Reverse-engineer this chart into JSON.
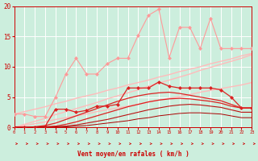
{
  "background_color": "#cceedd",
  "grid_color": "#ffffff",
  "x_min": 0,
  "x_max": 23,
  "y_min": 0,
  "y_max": 20,
  "xlabel": "Vent moyen/en rafales ( km/h )",
  "x_ticks": [
    0,
    1,
    2,
    3,
    4,
    5,
    6,
    7,
    8,
    9,
    10,
    11,
    12,
    13,
    14,
    15,
    16,
    17,
    18,
    19,
    20,
    21,
    22,
    23
  ],
  "y_ticks": [
    0,
    5,
    10,
    15,
    20
  ],
  "lines": [
    {
      "x": [
        0,
        1,
        2,
        3,
        4,
        5,
        6,
        7,
        8,
        9,
        10,
        11,
        12,
        13,
        14,
        15,
        16,
        17,
        18,
        19,
        20,
        21,
        22,
        23
      ],
      "y": [
        2.2,
        2.6,
        3.0,
        3.4,
        3.9,
        4.3,
        4.8,
        5.2,
        5.6,
        6.1,
        6.5,
        7.0,
        7.4,
        7.8,
        8.3,
        8.7,
        9.2,
        9.6,
        10.0,
        10.5,
        10.9,
        11.3,
        11.8,
        12.2
      ],
      "color": "#ffbbbb",
      "lw": 1.0,
      "marker": null,
      "ls": "-"
    },
    {
      "x": [
        0,
        1,
        2,
        3,
        4,
        5,
        6,
        7,
        8,
        9,
        10,
        11,
        12,
        13,
        14,
        15,
        16,
        17,
        18,
        19,
        20,
        21,
        22,
        23
      ],
      "y": [
        0,
        0.5,
        1.0,
        1.5,
        2.1,
        2.6,
        3.1,
        3.6,
        4.1,
        4.7,
        5.2,
        5.7,
        6.2,
        6.8,
        7.3,
        7.8,
        8.3,
        8.8,
        9.4,
        9.9,
        10.4,
        10.9,
        11.4,
        12.0
      ],
      "color": "#ffbbbb",
      "lw": 1.0,
      "marker": null,
      "ls": "-"
    },
    {
      "x": [
        0,
        1,
        2,
        3,
        4,
        5,
        6,
        7,
        8,
        9,
        10,
        11,
        12,
        13,
        14,
        15,
        16,
        17,
        18,
        19,
        20,
        21,
        22,
        23
      ],
      "y": [
        0,
        0.3,
        0.6,
        0.9,
        1.3,
        1.6,
        1.9,
        2.2,
        2.6,
        2.9,
        3.2,
        3.5,
        3.8,
        4.2,
        4.5,
        4.8,
        5.1,
        5.4,
        5.8,
        6.1,
        6.4,
        6.7,
        7.0,
        7.4
      ],
      "color": "#ffbbbb",
      "lw": 1.0,
      "marker": null,
      "ls": "-"
    },
    {
      "x": [
        0,
        1,
        2,
        3,
        4,
        5,
        6,
        7,
        8,
        9,
        10,
        11,
        12,
        13,
        14,
        15,
        16,
        17,
        18,
        19,
        20,
        21,
        22,
        23
      ],
      "y": [
        2.2,
        2.2,
        1.8,
        1.8,
        5.0,
        8.8,
        11.4,
        8.8,
        8.8,
        10.5,
        11.4,
        11.4,
        15.2,
        18.5,
        19.5,
        11.5,
        16.5,
        16.5,
        13.0,
        18.0,
        13.0,
        13.0,
        13.0,
        13.0
      ],
      "color": "#ff9999",
      "lw": 0.8,
      "marker": "D",
      "ms": 2.0,
      "ls": "-"
    },
    {
      "x": [
        0,
        1,
        2,
        3,
        4,
        5,
        6,
        7,
        8,
        9,
        10,
        11,
        12,
        13,
        14,
        15,
        16,
        17,
        18,
        19,
        20,
        21,
        22,
        23
      ],
      "y": [
        0,
        0,
        0,
        0.2,
        3.0,
        3.0,
        2.5,
        2.8,
        3.5,
        3.5,
        3.8,
        6.5,
        6.5,
        6.5,
        7.5,
        6.8,
        6.5,
        6.5,
        6.5,
        6.5,
        6.2,
        5.0,
        3.2,
        3.2
      ],
      "color": "#dd2222",
      "lw": 0.9,
      "marker": "D",
      "ms": 2.0,
      "ls": "-"
    },
    {
      "x": [
        0,
        1,
        2,
        3,
        4,
        5,
        6,
        7,
        8,
        9,
        10,
        11,
        12,
        13,
        14,
        15,
        16,
        17,
        18,
        19,
        20,
        21,
        22,
        23
      ],
      "y": [
        0,
        0,
        0.1,
        0.3,
        0.7,
        1.3,
        1.9,
        2.5,
        3.1,
        3.7,
        4.3,
        4.8,
        5.2,
        5.5,
        5.7,
        5.8,
        5.6,
        5.3,
        5.0,
        4.7,
        4.4,
        3.8,
        3.2,
        3.2
      ],
      "color": "#dd2222",
      "lw": 0.9,
      "marker": null,
      "ls": "-"
    },
    {
      "x": [
        0,
        1,
        2,
        3,
        4,
        5,
        6,
        7,
        8,
        9,
        10,
        11,
        12,
        13,
        14,
        15,
        16,
        17,
        18,
        19,
        20,
        21,
        22,
        23
      ],
      "y": [
        0,
        0,
        0,
        0.1,
        0.2,
        0.5,
        0.9,
        1.4,
        1.9,
        2.4,
        2.9,
        3.4,
        3.8,
        4.2,
        4.5,
        4.7,
        4.8,
        4.7,
        4.5,
        4.3,
        4.0,
        3.5,
        3.2,
        3.2
      ],
      "color": "#dd2222",
      "lw": 0.9,
      "marker": null,
      "ls": "-"
    },
    {
      "x": [
        0,
        1,
        2,
        3,
        4,
        5,
        6,
        7,
        8,
        9,
        10,
        11,
        12,
        13,
        14,
        15,
        16,
        17,
        18,
        19,
        20,
        21,
        22,
        23
      ],
      "y": [
        0,
        0,
        0,
        0.05,
        0.1,
        0.2,
        0.4,
        0.7,
        1.0,
        1.3,
        1.7,
        2.1,
        2.5,
        2.9,
        3.2,
        3.5,
        3.7,
        3.8,
        3.7,
        3.5,
        3.3,
        2.9,
        2.5,
        2.5
      ],
      "color": "#bb1111",
      "lw": 0.8,
      "marker": null,
      "ls": "-"
    },
    {
      "x": [
        0,
        1,
        2,
        3,
        4,
        5,
        6,
        7,
        8,
        9,
        10,
        11,
        12,
        13,
        14,
        15,
        16,
        17,
        18,
        19,
        20,
        21,
        22,
        23
      ],
      "y": [
        0,
        0,
        0,
        0,
        0.05,
        0.1,
        0.2,
        0.3,
        0.5,
        0.7,
        0.9,
        1.1,
        1.4,
        1.6,
        1.9,
        2.1,
        2.3,
        2.4,
        2.4,
        2.3,
        2.2,
        1.9,
        1.6,
        1.6
      ],
      "color": "#aa0000",
      "lw": 0.7,
      "marker": null,
      "ls": "-"
    }
  ],
  "arrow_color": "#cc0000"
}
